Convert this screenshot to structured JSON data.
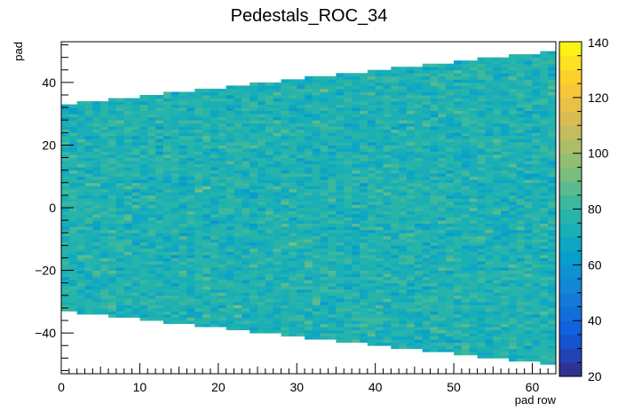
{
  "chart_data": {
    "type": "heatmap",
    "title": "Pedestals_ROC_34",
    "xlabel": "pad row",
    "ylabel": "pad",
    "xlim": [
      0,
      63
    ],
    "ylim": [
      -53,
      53
    ],
    "x_ticks": [
      0,
      10,
      20,
      30,
      40,
      50,
      60
    ],
    "x_tick_labels": [
      "0",
      "10",
      "20",
      "30",
      "40",
      "50",
      "60"
    ],
    "y_ticks": [
      -40,
      -20,
      0,
      20,
      40
    ],
    "y_tick_labels": [
      "−40",
      "−20",
      "0",
      "20",
      "40"
    ],
    "z_range": [
      20,
      140
    ],
    "z_ticks": [
      20,
      40,
      60,
      80,
      100,
      120,
      140
    ],
    "z_tick_labels": [
      "20",
      "40",
      "60",
      "80",
      "100",
      "120",
      "140"
    ],
    "palette": "kBird",
    "pad_half_width_first_row": 33,
    "pad_half_width_last_row": 50,
    "value_mean": 75,
    "value_spread": 10
  }
}
